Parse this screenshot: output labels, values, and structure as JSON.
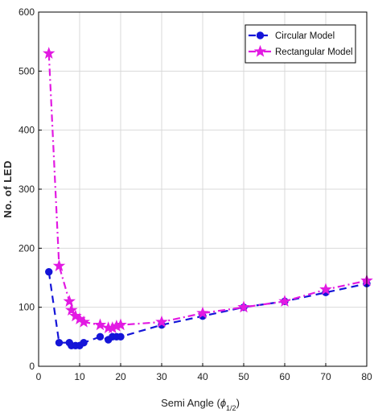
{
  "chart_data": {
    "type": "line",
    "xlabel": "Semi Angle",
    "xlabel_symbol": "ϕ",
    "xlabel_subscript": "1/2",
    "ylabel": "No. of LED",
    "xlim": [
      0,
      80
    ],
    "ylim": [
      0,
      600
    ],
    "xticks": [
      0,
      10,
      20,
      30,
      40,
      50,
      60,
      70,
      80
    ],
    "yticks": [
      0,
      100,
      200,
      300,
      400,
      500,
      600
    ],
    "grid": true,
    "legend_position": "top-right",
    "series": [
      {
        "name": "Circular Model",
        "color": "#1515d8",
        "line_style": "dashed",
        "marker": "circle",
        "x": [
          2.5,
          5,
          7.5,
          8,
          9,
          10,
          11,
          15,
          17,
          18,
          19,
          20,
          30,
          40,
          50,
          60,
          70,
          80
        ],
        "y": [
          160,
          40,
          40,
          35,
          35,
          35,
          40,
          50,
          45,
          50,
          50,
          50,
          70,
          85,
          100,
          110,
          125,
          140
        ]
      },
      {
        "name": "Rectangular Model",
        "color": "#e21ae2",
        "line_style": "dashdot",
        "marker": "star",
        "x": [
          2.5,
          5,
          7.5,
          8,
          9,
          10,
          11,
          15,
          17,
          18,
          19,
          20,
          30,
          40,
          50,
          60,
          70,
          80
        ],
        "y": [
          530,
          170,
          110,
          95,
          85,
          80,
          75,
          70,
          65,
          65,
          68,
          70,
          75,
          90,
          100,
          110,
          130,
          145
        ]
      }
    ]
  }
}
